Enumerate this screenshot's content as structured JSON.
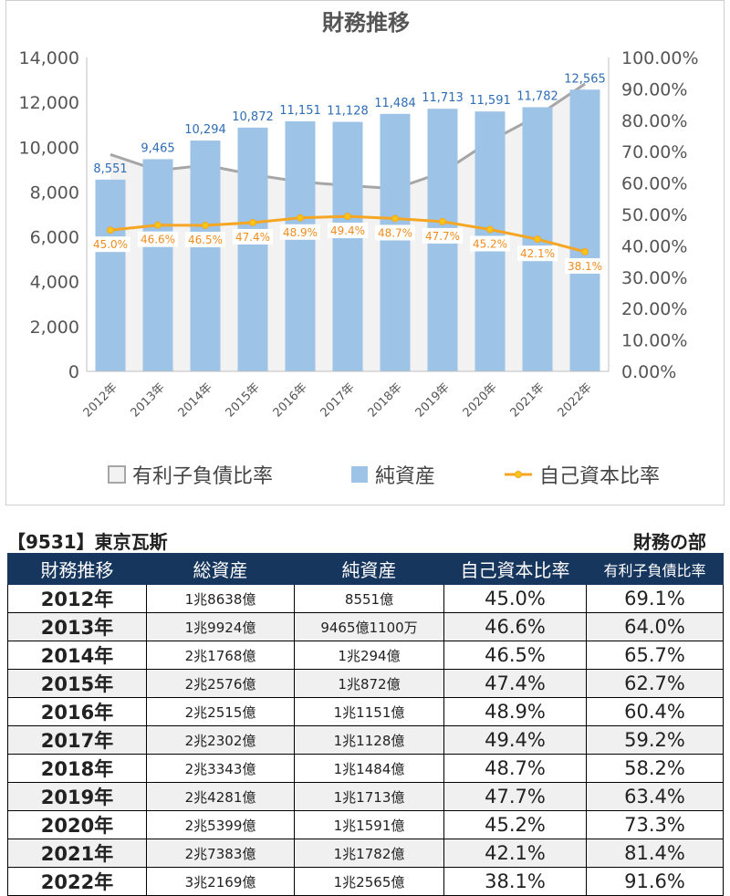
{
  "chart_data": {
    "type": "bar",
    "title": "財務推移",
    "categories": [
      "2012年",
      "2013年",
      "2014年",
      "2015年",
      "2016年",
      "2017年",
      "2018年",
      "2019年",
      "2020年",
      "2021年",
      "2022年"
    ],
    "series": [
      {
        "name": "純資産",
        "type": "bar",
        "axis": "left",
        "color": "#9dc3e6",
        "values": [
          8551,
          9465,
          10294,
          10872,
          11151,
          11128,
          11484,
          11713,
          11591,
          11782,
          12565
        ],
        "labels": [
          "8,551",
          "9,465",
          "10,294",
          "10,872",
          "11,151",
          "11,128",
          "11,484",
          "11,713",
          "11,591",
          "11,782",
          "12,565"
        ]
      },
      {
        "name": "有利子負債比率",
        "type": "area",
        "axis": "right",
        "color": "#a6a6a6",
        "values": [
          69.1,
          64.0,
          65.7,
          62.7,
          60.4,
          59.2,
          58.2,
          63.4,
          73.3,
          81.4,
          91.6
        ]
      },
      {
        "name": "自己資本比率",
        "type": "line",
        "axis": "right",
        "color": "#f5a623",
        "values": [
          45.0,
          46.6,
          46.5,
          47.4,
          48.9,
          49.4,
          48.7,
          47.7,
          45.2,
          42.1,
          38.1
        ],
        "labels": [
          "45.0%",
          "46.6%",
          "46.5%",
          "47.4%",
          "48.9%",
          "49.4%",
          "48.7%",
          "47.7%",
          "45.2%",
          "42.1%",
          "38.1%"
        ]
      }
    ],
    "ylim_left": [
      0,
      14000
    ],
    "ylim_right": [
      0,
      100
    ],
    "left_ticks": [
      "0",
      "2,000",
      "4,000",
      "6,000",
      "8,000",
      "10,000",
      "12,000",
      "14,000"
    ],
    "right_ticks": [
      "0.00%",
      "10.00%",
      "20.00%",
      "30.00%",
      "40.00%",
      "50.00%",
      "60.00%",
      "70.00%",
      "80.00%",
      "90.00%",
      "100.00%"
    ],
    "legend_position": "bottom",
    "grid": false
  },
  "table": {
    "company": "【9531】東京瓦斯",
    "section": "財務の部",
    "headers": [
      "財務推移",
      "総資産",
      "純資産",
      "自己資本比率",
      "有利子負債比率"
    ],
    "rows": [
      [
        "2012年",
        "1兆8638億",
        "8551億",
        "45.0%",
        "69.1%"
      ],
      [
        "2013年",
        "1兆9924億",
        "9465億1100万",
        "46.6%",
        "64.0%"
      ],
      [
        "2014年",
        "2兆1768億",
        "1兆294億",
        "46.5%",
        "65.7%"
      ],
      [
        "2015年",
        "2兆2576億",
        "1兆872億",
        "47.4%",
        "62.7%"
      ],
      [
        "2016年",
        "2兆2515億",
        "1兆1151億",
        "48.9%",
        "60.4%"
      ],
      [
        "2017年",
        "2兆2302億",
        "1兆1128億",
        "49.4%",
        "59.2%"
      ],
      [
        "2018年",
        "2兆3343億",
        "1兆1484億",
        "48.7%",
        "58.2%"
      ],
      [
        "2019年",
        "2兆4281億",
        "1兆1713億",
        "47.7%",
        "63.4%"
      ],
      [
        "2020年",
        "2兆5399億",
        "1兆1591億",
        "45.2%",
        "73.3%"
      ],
      [
        "2021年",
        "2兆7383億",
        "1兆1782億",
        "42.1%",
        "81.4%"
      ],
      [
        "2022年",
        "3兆2169億",
        "1兆2565億",
        "38.1%",
        "91.6%"
      ]
    ]
  }
}
